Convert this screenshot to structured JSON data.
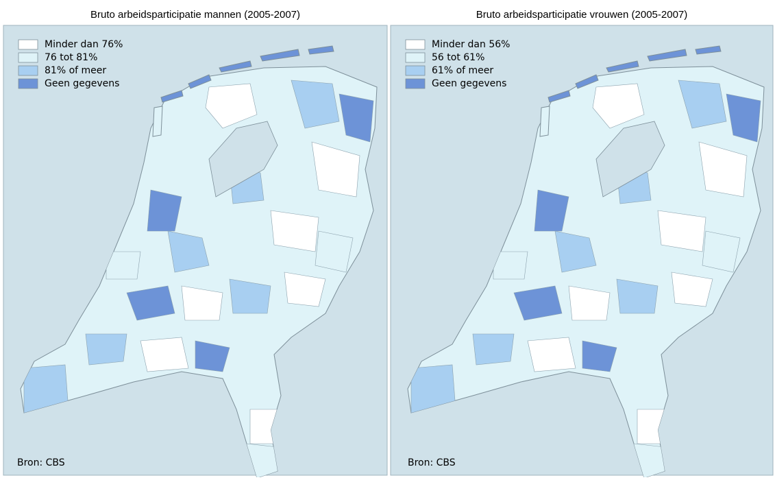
{
  "maps": [
    {
      "title": "Bruto arbeidsparticipatie mannen (2005-2007)",
      "legend": [
        {
          "label": "Minder dan 76%",
          "color": "#ffffff"
        },
        {
          "label": "76 tot 81%",
          "color": "#dff3f8"
        },
        {
          "label": "81% of meer",
          "color": "#a8cff1"
        },
        {
          "label": "Geen gegevens",
          "color": "#6d93d7"
        }
      ],
      "source": "Bron: CBS"
    },
    {
      "title": "Bruto arbeidsparticipatie vrouwen (2005-2007)",
      "legend": [
        {
          "label": "Minder dan 56%",
          "color": "#ffffff"
        },
        {
          "label": "56 tot 61%",
          "color": "#dff3f8"
        },
        {
          "label": "61% of meer",
          "color": "#a8cff1"
        },
        {
          "label": "Geen gegevens",
          "color": "#6d93d7"
        }
      ],
      "source": "Bron: CBS"
    }
  ]
}
